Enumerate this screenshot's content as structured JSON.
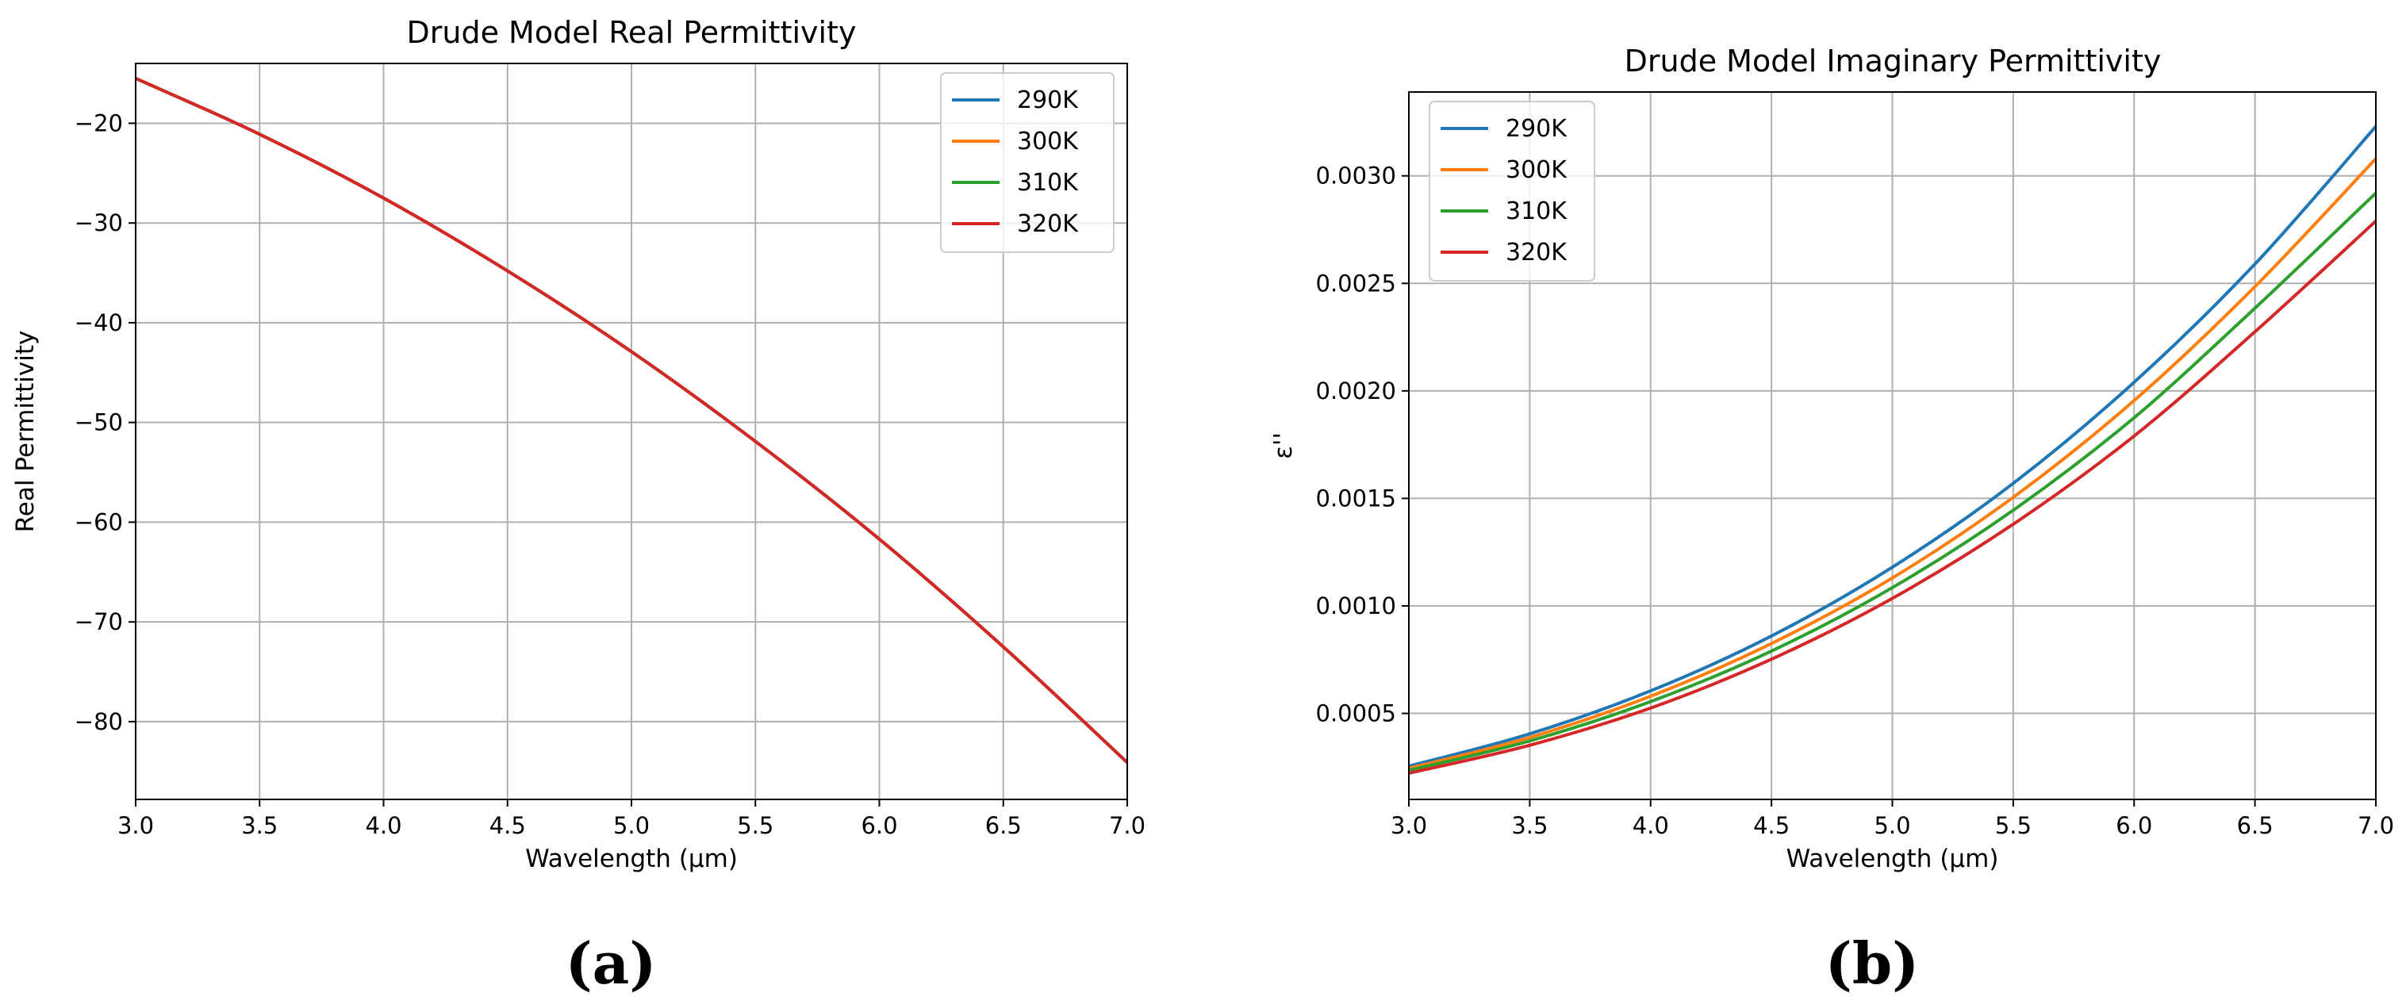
{
  "colors": {
    "290K": "#1f77b4",
    "300K": "#ff7f0e",
    "310K": "#2ca02c",
    "320K": "#d62728",
    "grid": "#b0b0b0",
    "axis": "#000000"
  },
  "panel_labels": [
    "(a)",
    "(b)"
  ],
  "chart_data": [
    {
      "type": "line",
      "title": "Drude Model Real Permittivity",
      "xlabel": "Wavelength (μm)",
      "ylabel": "Real Permittivity",
      "xlim": [
        3.0,
        7.0
      ],
      "ylim": [
        -87.8,
        -14.0
      ],
      "xticks": [
        3.0,
        3.5,
        4.0,
        4.5,
        5.0,
        5.5,
        6.0,
        6.5,
        7.0
      ],
      "xtick_labels": [
        "3.0",
        "3.5",
        "4.0",
        "4.5",
        "5.0",
        "5.5",
        "6.0",
        "6.5",
        "7.0"
      ],
      "yticks": [
        -80,
        -70,
        -60,
        -50,
        -40,
        -30,
        -20
      ],
      "ytick_labels": [
        "−80",
        "−70",
        "−60",
        "−50",
        "−40",
        "−30",
        "−20"
      ],
      "grid": true,
      "legend_position": "top-right",
      "x": [
        3.0,
        3.5,
        4.0,
        4.5,
        5.0,
        5.5,
        6.0,
        6.5,
        7.0
      ],
      "series": [
        {
          "name": "290K",
          "values": [
            -15.5,
            -21.1,
            -27.5,
            -34.8,
            -42.9,
            -51.9,
            -61.7,
            -72.5,
            -84.1
          ]
        },
        {
          "name": "300K",
          "values": [
            -15.5,
            -21.1,
            -27.5,
            -34.8,
            -42.9,
            -51.9,
            -61.7,
            -72.5,
            -84.1
          ]
        },
        {
          "name": "310K",
          "values": [
            -15.5,
            -21.1,
            -27.5,
            -34.8,
            -42.9,
            -51.9,
            -61.7,
            -72.5,
            -84.1
          ]
        },
        {
          "name": "320K",
          "values": [
            -15.5,
            -21.1,
            -27.5,
            -34.8,
            -42.9,
            -51.9,
            -61.7,
            -72.5,
            -84.1
          ]
        }
      ]
    },
    {
      "type": "line",
      "title": "Drude Model Imaginary Permittivity",
      "xlabel": "Wavelength (μm)",
      "ylabel": "ε''",
      "xlim": [
        3.0,
        7.0
      ],
      "ylim": [
        0.0001,
        0.00339
      ],
      "xticks": [
        3.0,
        3.5,
        4.0,
        4.5,
        5.0,
        5.5,
        6.0,
        6.5,
        7.0
      ],
      "xtick_labels": [
        "3.0",
        "3.5",
        "4.0",
        "4.5",
        "5.0",
        "5.5",
        "6.0",
        "6.5",
        "7.0"
      ],
      "yticks": [
        0.0005,
        0.001,
        0.0015,
        0.002,
        0.0025,
        0.003
      ],
      "ytick_labels": [
        "0.0005",
        "0.0010",
        "0.0015",
        "0.0020",
        "0.0025",
        "0.0030"
      ],
      "grid": true,
      "legend_position": "top-left",
      "x": [
        3.0,
        3.5,
        4.0,
        4.5,
        5.0,
        5.5,
        6.0,
        6.5,
        7.0
      ],
      "series": [
        {
          "name": "290K",
          "values": [
            0.000255,
            0.000405,
            0.000605,
            0.00086,
            0.00118,
            0.00157,
            0.00204,
            0.00259,
            0.00323
          ]
        },
        {
          "name": "300K",
          "values": [
            0.000245,
            0.000388,
            0.00058,
            0.000825,
            0.00113,
            0.001505,
            0.001955,
            0.002485,
            0.00308
          ]
        },
        {
          "name": "310K",
          "values": [
            0.000235,
            0.000372,
            0.000555,
            0.00079,
            0.001085,
            0.001445,
            0.001875,
            0.002385,
            0.00292
          ]
        },
        {
          "name": "320K",
          "values": [
            0.000222,
            0.000352,
            0.000525,
            0.000752,
            0.001035,
            0.00138,
            0.00179,
            0.002275,
            0.00279
          ]
        }
      ]
    }
  ]
}
